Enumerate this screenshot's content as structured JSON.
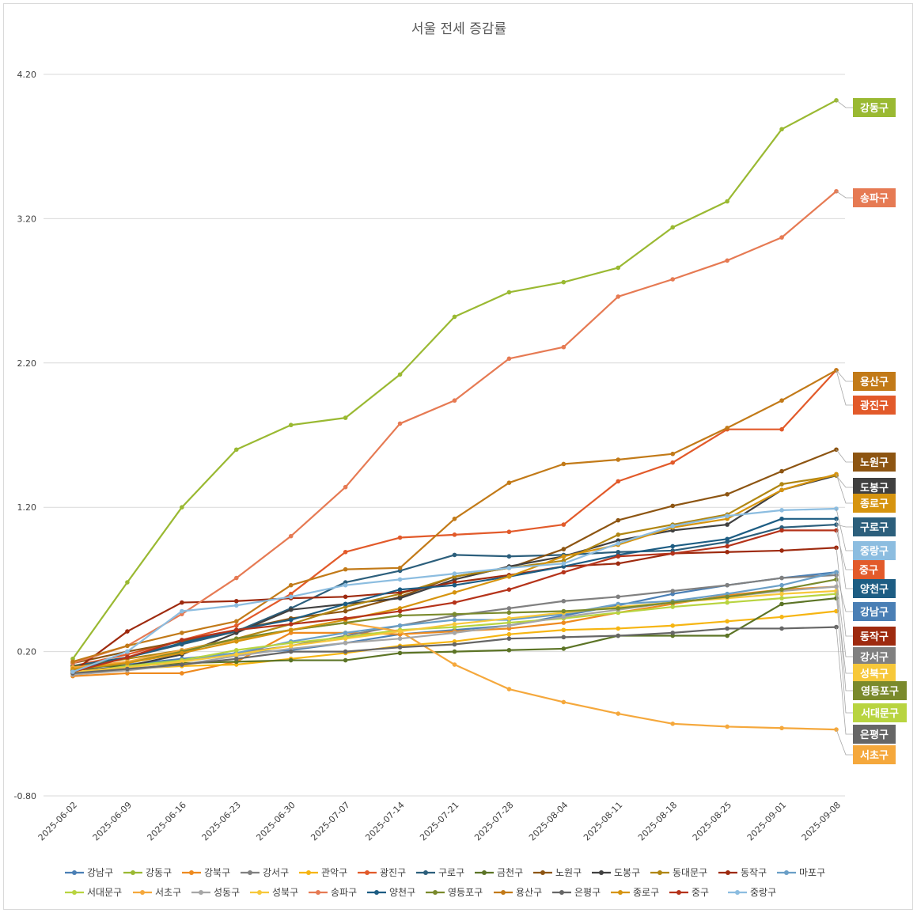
{
  "chart_data": {
    "type": "line",
    "title": "서울 전세 증감률",
    "xlabel": "",
    "ylabel": "",
    "ylim": [
      -0.8,
      4.6
    ],
    "y_ticks": [
      "4.20",
      "3.20",
      "2.20",
      "1.20",
      "0.20",
      "-0.80"
    ],
    "y_tick_values": [
      4.2,
      3.2,
      2.2,
      1.2,
      0.2,
      -0.8
    ],
    "grid": true,
    "legend_position": "bottom",
    "categories": [
      "2025-06-02",
      "2025-06-09",
      "2025-06-16",
      "2025-06-23",
      "2025-06-30",
      "2025-07-07",
      "2025-07-14",
      "2025-07-21",
      "2025-07-28",
      "2025-08-04",
      "2025-08-11",
      "2025-08-18",
      "2025-08-25",
      "2025-09-01",
      "2025-09-08"
    ],
    "series": [
      {
        "name": "강남구",
        "color": "#4a7fb5",
        "values": [
          0.08,
          0.11,
          0.15,
          0.19,
          0.21,
          0.26,
          0.32,
          0.35,
          0.38,
          0.45,
          0.52,
          0.6,
          0.66,
          0.71,
          0.75
        ]
      },
      {
        "name": "강동구",
        "color": "#9ab932",
        "values": [
          0.15,
          0.68,
          1.2,
          1.6,
          1.77,
          1.82,
          2.12,
          2.52,
          2.69,
          2.76,
          2.86,
          3.14,
          3.32,
          3.82,
          4.02
        ]
      },
      {
        "name": "강북구",
        "color": "#ee8a1f",
        "values": [
          0.03,
          0.05,
          0.05,
          0.13,
          0.33,
          0.33,
          0.32,
          0.34,
          0.36,
          0.4,
          0.47,
          0.53,
          0.59,
          0.63,
          0.65
        ]
      },
      {
        "name": "강서구",
        "color": "#808080",
        "values": [
          0.07,
          0.09,
          0.14,
          0.19,
          0.24,
          0.31,
          0.38,
          0.45,
          0.5,
          0.55,
          0.58,
          0.62,
          0.66,
          0.71,
          0.73
        ]
      },
      {
        "name": "관악구",
        "color": "#f6b512",
        "values": [
          0.06,
          0.08,
          0.1,
          0.11,
          0.15,
          0.19,
          0.24,
          0.27,
          0.32,
          0.35,
          0.36,
          0.38,
          0.41,
          0.44,
          0.48
        ]
      },
      {
        "name": "광진구",
        "color": "#e25a2a",
        "values": [
          0.1,
          0.18,
          0.28,
          0.38,
          0.6,
          0.89,
          0.99,
          1.01,
          1.03,
          1.08,
          1.38,
          1.51,
          1.74,
          1.74,
          2.15
        ]
      },
      {
        "name": "구로구",
        "color": "#2c5f7c",
        "values": [
          0.1,
          0.16,
          0.25,
          0.34,
          0.5,
          0.68,
          0.76,
          0.87,
          0.86,
          0.87,
          0.89,
          0.9,
          0.96,
          1.06,
          1.08
        ]
      },
      {
        "name": "금천구",
        "color": "#5c7426",
        "values": [
          0.1,
          0.1,
          0.12,
          0.13,
          0.14,
          0.14,
          0.19,
          0.2,
          0.21,
          0.22,
          0.31,
          0.31,
          0.31,
          0.53,
          0.57
        ]
      },
      {
        "name": "노원구",
        "color": "#8d5512",
        "values": [
          0.12,
          0.2,
          0.27,
          0.35,
          0.43,
          0.48,
          0.58,
          0.72,
          0.78,
          0.91,
          1.11,
          1.21,
          1.29,
          1.45,
          1.6
        ]
      },
      {
        "name": "도봉구",
        "color": "#404040",
        "values": [
          0.06,
          0.1,
          0.18,
          0.33,
          0.49,
          0.53,
          0.57,
          0.7,
          0.79,
          0.86,
          0.97,
          1.04,
          1.08,
          1.32,
          1.42
        ]
      },
      {
        "name": "동대문구",
        "color": "#b08612",
        "values": [
          0.09,
          0.15,
          0.21,
          0.29,
          0.39,
          0.51,
          0.6,
          0.72,
          0.78,
          0.83,
          1.01,
          1.08,
          1.15,
          1.36,
          1.42
        ]
      },
      {
        "name": "동작구",
        "color": "#9e2a0f",
        "values": [
          0.06,
          0.34,
          0.54,
          0.55,
          0.57,
          0.58,
          0.61,
          0.68,
          0.73,
          0.79,
          0.81,
          0.88,
          0.89,
          0.9,
          0.92
        ]
      },
      {
        "name": "마포구",
        "color": "#6a9fc7",
        "values": [
          0.05,
          0.09,
          0.14,
          0.19,
          0.27,
          0.33,
          0.38,
          0.42,
          0.42,
          0.46,
          0.53,
          0.55,
          0.6,
          0.66,
          0.75
        ]
      },
      {
        "name": "서대문구",
        "color": "#b8d440",
        "values": [
          0.05,
          0.1,
          0.14,
          0.21,
          0.26,
          0.3,
          0.35,
          0.37,
          0.4,
          0.43,
          0.47,
          0.51,
          0.54,
          0.57,
          0.6
        ]
      },
      {
        "name": "서초구",
        "color": "#f5a83c",
        "values": [
          0.09,
          0.13,
          0.21,
          0.28,
          0.35,
          0.4,
          0.34,
          0.11,
          -0.06,
          -0.15,
          -0.23,
          -0.3,
          -0.32,
          -0.33,
          -0.34
        ]
      },
      {
        "name": "성동구",
        "color": "#a6a6a6",
        "values": [
          0.04,
          0.07,
          0.11,
          0.17,
          0.22,
          0.26,
          0.29,
          0.33,
          0.38,
          0.44,
          0.49,
          0.54,
          0.58,
          0.62,
          0.65
        ]
      },
      {
        "name": "성북구",
        "color": "#f7c83a",
        "values": [
          0.06,
          0.09,
          0.13,
          0.18,
          0.24,
          0.29,
          0.34,
          0.39,
          0.43,
          0.47,
          0.51,
          0.54,
          0.57,
          0.6,
          0.62
        ]
      },
      {
        "name": "송파구",
        "color": "#e67a53",
        "values": [
          0.12,
          0.24,
          0.46,
          0.71,
          1.0,
          1.34,
          1.78,
          1.94,
          2.23,
          2.31,
          2.66,
          2.78,
          2.91,
          3.07,
          3.39
        ]
      },
      {
        "name": "양천구",
        "color": "#1d5d83",
        "values": [
          0.07,
          0.16,
          0.26,
          0.35,
          0.42,
          0.53,
          0.63,
          0.66,
          0.72,
          0.79,
          0.87,
          0.93,
          0.98,
          1.12,
          1.12
        ]
      },
      {
        "name": "영등포구",
        "color": "#7a8a2c",
        "values": [
          0.07,
          0.12,
          0.2,
          0.29,
          0.35,
          0.4,
          0.45,
          0.46,
          0.47,
          0.48,
          0.5,
          0.54,
          0.58,
          0.63,
          0.7
        ]
      },
      {
        "name": "용산구",
        "color": "#c27a18",
        "values": [
          0.13,
          0.24,
          0.33,
          0.41,
          0.66,
          0.77,
          0.78,
          1.12,
          1.37,
          1.5,
          1.53,
          1.57,
          1.75,
          1.94,
          2.15
        ]
      },
      {
        "name": "은평구",
        "color": "#666666",
        "values": [
          0.05,
          0.08,
          0.11,
          0.15,
          0.2,
          0.2,
          0.23,
          0.25,
          0.29,
          0.3,
          0.31,
          0.33,
          0.36,
          0.36,
          0.37
        ]
      },
      {
        "name": "종로구",
        "color": "#d6940f",
        "values": [
          0.08,
          0.12,
          0.19,
          0.27,
          0.35,
          0.42,
          0.5,
          0.61,
          0.72,
          0.86,
          0.94,
          1.06,
          1.12,
          1.32,
          1.43
        ]
      },
      {
        "name": "중구",
        "color": "#b5331a",
        "values": [
          0.06,
          0.16,
          0.28,
          0.35,
          0.39,
          0.43,
          0.48,
          0.54,
          0.63,
          0.75,
          0.86,
          0.88,
          0.93,
          1.04,
          1.04
        ]
      },
      {
        "name": "중랑구",
        "color": "#8cbde0",
        "values": [
          0.06,
          0.2,
          0.48,
          0.52,
          0.58,
          0.66,
          0.7,
          0.74,
          0.78,
          0.81,
          0.95,
          1.07,
          1.14,
          1.18,
          1.19
        ]
      }
    ],
    "end_labels": [
      {
        "name": "강동구",
        "color": "#9ab932"
      },
      {
        "name": "송파구",
        "color": "#e67a53"
      },
      {
        "name": "용산구",
        "color": "#c27a18"
      },
      {
        "name": "광진구",
        "color": "#e25a2a"
      },
      {
        "name": "노원구",
        "color": "#8d5512"
      },
      {
        "name": "도봉구",
        "color": "#404040"
      },
      {
        "name": "종로구",
        "color": "#d6940f"
      },
      {
        "name": "구로구",
        "color": "#2c5f7c"
      },
      {
        "name": "중랑구",
        "color": "#8cbde0"
      },
      {
        "name": "중구",
        "color": "#e25a2a"
      },
      {
        "name": "양천구",
        "color": "#1d5d83"
      },
      {
        "name": "강남구",
        "color": "#4a7fb5"
      },
      {
        "name": "동작구",
        "color": "#9e2a0f"
      },
      {
        "name": "강서구",
        "color": "#808080"
      },
      {
        "name": "성북구",
        "color": "#f7c83a"
      },
      {
        "name": "영등포구",
        "color": "#7a8a2c"
      },
      {
        "name": "서대문구",
        "color": "#b8d440"
      },
      {
        "name": "은평구",
        "color": "#666666"
      },
      {
        "name": "서초구",
        "color": "#f5a83c"
      }
    ]
  }
}
